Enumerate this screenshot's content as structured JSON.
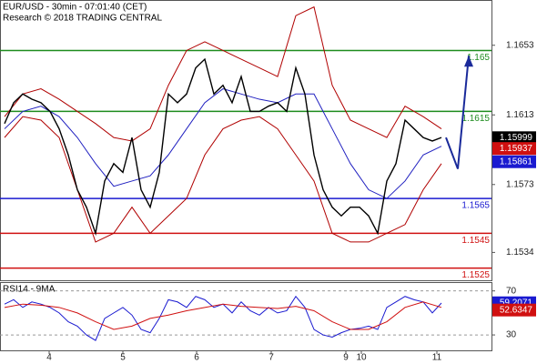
{
  "chart_data": [
    {
      "type": "line",
      "title": "EUR/USD - 30min - 07:01:40 (CET)",
      "subtitle": "Research © 2018 TRADING CENTRAL",
      "xlim": [
        0,
        108
      ],
      "ylim": [
        1.1518,
        1.1679
      ],
      "yticks": [
        1.1534,
        1.1573,
        1.1613,
        1.1653
      ],
      "series": [
        {
          "color": "#b00000",
          "x": [
            1,
            5,
            9,
            13,
            17,
            21,
            25,
            29,
            33,
            37,
            41,
            45,
            49,
            53,
            57,
            61,
            65,
            69,
            73,
            77,
            81,
            85,
            89,
            93,
            97
          ],
          "values": [
            1.1612,
            1.1625,
            1.1628,
            1.1622,
            1.1615,
            1.1608,
            1.16,
            1.1598,
            1.1605,
            1.163,
            1.165,
            1.1655,
            1.165,
            1.1645,
            1.164,
            1.1635,
            1.167,
            1.1675,
            1.163,
            1.161,
            1.1605,
            1.16,
            1.1618,
            1.1612,
            1.1605
          ]
        },
        {
          "color": "#b00000",
          "x": [
            1,
            5,
            9,
            13,
            17,
            21,
            25,
            29,
            33,
            37,
            41,
            45,
            49,
            53,
            57,
            61,
            65,
            69,
            73,
            77,
            81,
            85,
            89,
            93,
            97
          ],
          "values": [
            1.16,
            1.1612,
            1.161,
            1.16,
            1.157,
            1.154,
            1.1545,
            1.156,
            1.1545,
            1.1555,
            1.1565,
            1.159,
            1.1605,
            1.161,
            1.1612,
            1.1605,
            1.159,
            1.1575,
            1.1545,
            1.154,
            1.154,
            1.1545,
            1.155,
            1.157,
            1.1585
          ]
        },
        {
          "color": "#2020c0",
          "x": [
            1,
            5,
            9,
            13,
            17,
            21,
            25,
            29,
            33,
            37,
            41,
            45,
            49,
            53,
            57,
            61,
            65,
            69,
            73,
            77,
            81,
            85,
            89,
            93,
            97
          ],
          "values": [
            1.1605,
            1.1615,
            1.1618,
            1.1612,
            1.16,
            1.1585,
            1.1572,
            1.1575,
            1.1578,
            1.159,
            1.1605,
            1.162,
            1.1628,
            1.1625,
            1.1622,
            1.162,
            1.1625,
            1.1625,
            1.1605,
            1.1585,
            1.157,
            1.1565,
            1.1575,
            1.159,
            1.1595
          ]
        },
        {
          "color": "#000000",
          "x": [
            1,
            3,
            5,
            7,
            9,
            11,
            13,
            15,
            17,
            19,
            21,
            23,
            25,
            27,
            29,
            31,
            33,
            35,
            37,
            39,
            41,
            43,
            45,
            47,
            49,
            51,
            53,
            55,
            57,
            59,
            61,
            63,
            65,
            67,
            69,
            71,
            73,
            75,
            77,
            79,
            81,
            83,
            85,
            87,
            89,
            91,
            93,
            95,
            97
          ],
          "values": [
            1.1608,
            1.162,
            1.1625,
            1.1622,
            1.162,
            1.1615,
            1.1605,
            1.159,
            1.157,
            1.156,
            1.1545,
            1.1575,
            1.1585,
            1.158,
            1.16,
            1.157,
            1.156,
            1.158,
            1.1625,
            1.162,
            1.1625,
            1.164,
            1.1645,
            1.1625,
            1.163,
            1.162,
            1.1635,
            1.1615,
            1.1615,
            1.1618,
            1.162,
            1.1615,
            1.164,
            1.1625,
            1.159,
            1.157,
            1.156,
            1.1555,
            1.156,
            1.156,
            1.1555,
            1.1545,
            1.1575,
            1.1585,
            1.161,
            1.1605,
            1.16,
            1.1598,
            1.16
          ]
        }
      ],
      "projection": {
        "color": "#1a2a9a",
        "x": [
          98,
          100.6,
          103
        ],
        "values": [
          1.16,
          1.1582,
          1.1647
        ]
      },
      "levels": [
        {
          "value": 1.165,
          "color": "#1e8c1e"
        },
        {
          "value": 1.1615,
          "color": "#1e8c1e"
        },
        {
          "value": 1.1565,
          "color": "#1a1ad0"
        },
        {
          "value": 1.1545,
          "color": "#d01010"
        },
        {
          "value": 1.1525,
          "color": "#d01010"
        }
      ],
      "price_tags": [
        {
          "value": 1.15999,
          "color": "#000000"
        },
        {
          "value": 1.15937,
          "color": "#d01010"
        },
        {
          "value": 1.15861,
          "color": "#1a1ad0"
        }
      ]
    },
    {
      "type": "line",
      "title": "RSI14 - 9MA",
      "xlim": [
        0,
        108
      ],
      "ylim": [
        16,
        78
      ],
      "yticks": [
        30,
        70
      ],
      "xticks": [
        {
          "value": 10.8,
          "label": "4"
        },
        {
          "value": 27,
          "label": "5"
        },
        {
          "value": 43.2,
          "label": "6"
        },
        {
          "value": 59.6,
          "label": "7"
        },
        {
          "value": 76,
          "label": "9"
        },
        {
          "value": 79.4,
          "label": "10"
        },
        {
          "value": 96,
          "label": "11"
        }
      ],
      "series": [
        {
          "color": "#1a1ad0",
          "x": [
            1,
            3,
            5,
            7,
            9,
            11,
            13,
            15,
            17,
            19,
            21,
            23,
            25,
            27,
            29,
            31,
            33,
            35,
            37,
            39,
            41,
            43,
            45,
            47,
            49,
            51,
            53,
            55,
            57,
            59,
            61,
            63,
            65,
            67,
            69,
            71,
            73,
            75,
            77,
            79,
            81,
            83,
            85,
            87,
            89,
            91,
            93,
            95,
            97
          ],
          "values": [
            58,
            62,
            55,
            60,
            58,
            55,
            50,
            42,
            38,
            30,
            25,
            45,
            50,
            55,
            48,
            35,
            32,
            45,
            62,
            60,
            55,
            65,
            62,
            55,
            58,
            50,
            60,
            52,
            48,
            55,
            50,
            52,
            65,
            55,
            35,
            30,
            28,
            32,
            35,
            36,
            38,
            35,
            55,
            60,
            65,
            62,
            60,
            50,
            59
          ]
        },
        {
          "color": "#d01010",
          "x": [
            1,
            5,
            9,
            13,
            17,
            21,
            25,
            29,
            33,
            37,
            41,
            45,
            49,
            53,
            57,
            61,
            65,
            69,
            73,
            77,
            81,
            85,
            89,
            93,
            97
          ],
          "values": [
            55,
            58,
            57,
            55,
            50,
            42,
            35,
            38,
            45,
            48,
            52,
            55,
            58,
            56,
            55,
            54,
            56,
            52,
            42,
            35,
            35,
            42,
            55,
            60,
            55
          ]
        }
      ],
      "price_tags": [
        {
          "value": 59.2071,
          "color": "#1a1ad0"
        },
        {
          "value": 52.6347,
          "color": "#d01010"
        }
      ]
    }
  ]
}
